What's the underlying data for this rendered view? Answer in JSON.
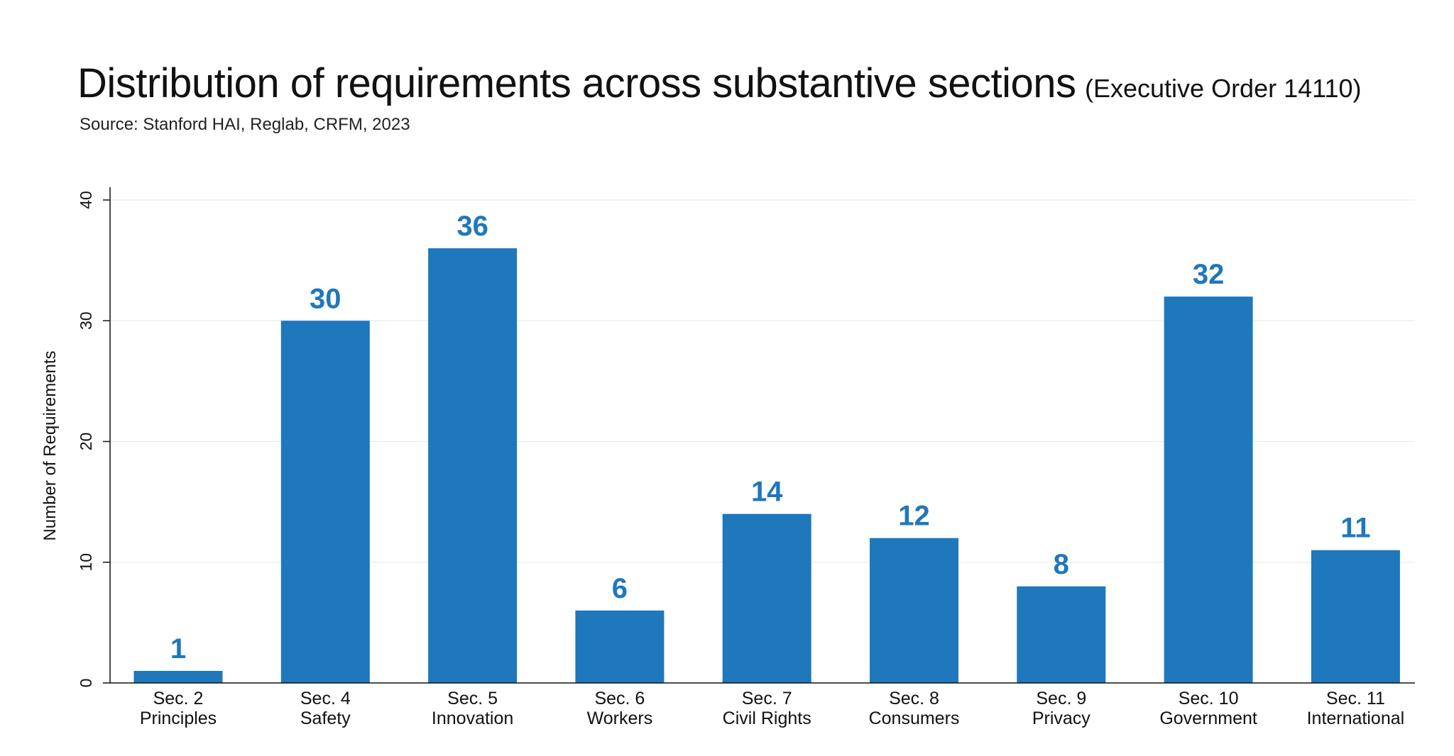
{
  "header": {
    "title": "Distribution of requirements across substantive sections",
    "subtitle": "(Executive Order 14110)",
    "source": "Source: Stanford HAI, Reglab, CRFM, 2023"
  },
  "colors": {
    "bar": "#1f77bc",
    "label": "#1f77bc",
    "grid": "#e3edf3",
    "axis": "#111111"
  },
  "chart_data": {
    "type": "bar",
    "ylabel": "Number of Requirements",
    "xlabel": "",
    "ylim": [
      0,
      40
    ],
    "yticks": [
      0,
      10,
      20,
      30,
      40
    ],
    "grid": "horizontal",
    "categories": [
      [
        "Sec. 2",
        "Principles"
      ],
      [
        "Sec. 4",
        "Safety"
      ],
      [
        "Sec. 5",
        "Innovation"
      ],
      [
        "Sec. 6",
        "Workers"
      ],
      [
        "Sec. 7",
        "Civil Rights"
      ],
      [
        "Sec. 8",
        "Consumers"
      ],
      [
        "Sec. 9",
        "Privacy"
      ],
      [
        "Sec. 10",
        "Government"
      ],
      [
        "Sec. 11",
        "International"
      ]
    ],
    "values": [
      1,
      30,
      36,
      6,
      14,
      12,
      8,
      32,
      11
    ]
  }
}
